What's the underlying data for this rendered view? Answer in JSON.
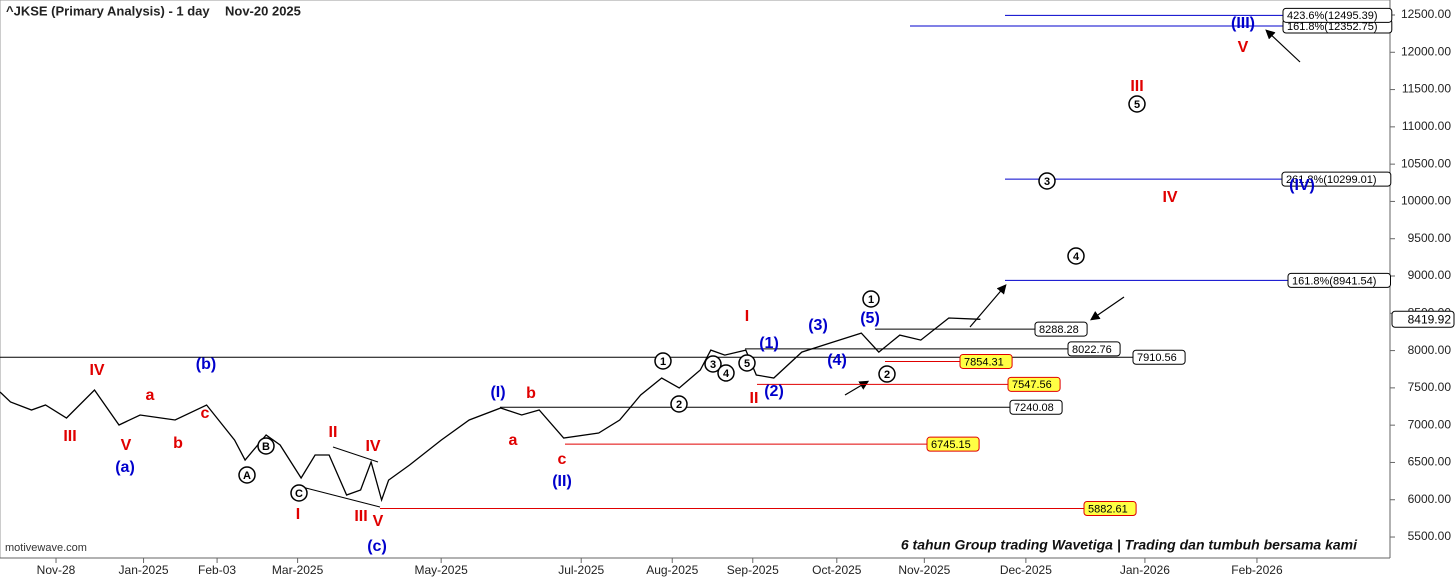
{
  "chart_data": {
    "type": "line",
    "title": "^JKSE (Primary Analysis) - 1 day",
    "date": "Nov-20 2025",
    "watermark": "motivewave.com",
    "banner": "6 tahun Group trading Wavetiga | Trading dan tumbuh bersama kami",
    "color": "#000000",
    "x": [
      0,
      3,
      9,
      13,
      19,
      27,
      34,
      40,
      46,
      50,
      59,
      67,
      70,
      76,
      80,
      86,
      90,
      94,
      99,
      103,
      106,
      109,
      111,
      117,
      126,
      134,
      143,
      149,
      154,
      161,
      171,
      177,
      183,
      189,
      194,
      200,
      203,
      207,
      213,
      216,
      221,
      229,
      237,
      246,
      251,
      257,
      263,
      271,
      280
    ],
    "values": [
      7444,
      7310,
      7203,
      7270,
      7096,
      7471,
      7002,
      7136,
      7096,
      7069,
      7270,
      6800,
      6532,
      6868,
      6734,
      6291,
      6600,
      6600,
      6063,
      6130,
      6506,
      5996,
      6264,
      6466,
      6800,
      7069,
      7230,
      7136,
      7203,
      6828,
      6895,
      7069,
      7404,
      7632,
      7498,
      7739,
      8007,
      7940,
      8007,
      7672,
      7632,
      7980,
      8101,
      8235,
      7980,
      8208,
      8141,
      8437,
      8419.92
    ],
    "xlim": [
      0,
      397
    ],
    "xticks": [
      {
        "value": 16,
        "label": "Nov-28"
      },
      {
        "value": 41,
        "label": "Jan-2025"
      },
      {
        "value": 62,
        "label": "Feb-03"
      },
      {
        "value": 85,
        "label": "Mar-2025"
      },
      {
        "value": 126,
        "label": "May-2025"
      },
      {
        "value": 166,
        "label": "Jul-2025"
      },
      {
        "value": 192,
        "label": "Aug-2025"
      },
      {
        "value": 215,
        "label": "Sep-2025"
      },
      {
        "value": 239,
        "label": "Oct-2025"
      },
      {
        "value": 264,
        "label": "Nov-2025"
      },
      {
        "value": 293,
        "label": "Dec-2025"
      },
      {
        "value": 327,
        "label": "Jan-2026"
      },
      {
        "value": 359,
        "label": "Feb-2026"
      }
    ],
    "ylim": [
      5259,
      12701
    ],
    "yticks": [
      {
        "value": 5500,
        "label": "5500.00"
      },
      {
        "value": 6000,
        "label": "6000.00"
      },
      {
        "value": 6500,
        "label": "6500.00"
      },
      {
        "value": 7000,
        "label": "7000.00"
      },
      {
        "value": 7500,
        "label": "7500.00"
      },
      {
        "value": 8000,
        "label": "8000.00"
      },
      {
        "value": 8500,
        "label": "8500.00"
      },
      {
        "value": 9000,
        "label": "9000.00"
      },
      {
        "value": 9500,
        "label": "9500.00"
      },
      {
        "value": 10000,
        "label": "10000.00"
      },
      {
        "value": 10500,
        "label": "10500.00"
      },
      {
        "value": 11000,
        "label": "11000.00"
      },
      {
        "value": 11500,
        "label": "11500.00"
      },
      {
        "value": 12000,
        "label": "12000.00"
      },
      {
        "value": 12500,
        "label": "12500.00"
      }
    ],
    "last_price": 8419.92,
    "levels": [
      {
        "value": 8288.28,
        "color": "#000000",
        "box": "#ffffff"
      },
      {
        "value": 8022.76,
        "color": "#000000",
        "box": "#ffffff"
      },
      {
        "value": 7910.56,
        "color": "#000000",
        "box": "#ffffff"
      },
      {
        "value": 7854.31,
        "color": "#e00000",
        "box": "#ffff44"
      },
      {
        "value": 7547.56,
        "color": "#e00000",
        "box": "#ffff44"
      },
      {
        "value": 7240.08,
        "color": "#000000",
        "box": "#ffffff"
      },
      {
        "value": 6745.15,
        "color": "#e00000",
        "box": "#ffff44"
      },
      {
        "value": 5882.61,
        "color": "#e00000",
        "box": "#ffff44"
      },
      {
        "value": 8941.54,
        "label": "161.8%(8941.54)",
        "color": "#0000cc",
        "box": "#ffffff"
      },
      {
        "value": 10299.01,
        "label": "261.8%(10299.01)",
        "color": "#0000cc",
        "box": "#ffffff"
      },
      {
        "value": 12352.75,
        "label": "161.8%(12352.75)",
        "color": "#0000cc",
        "box": "#ffffff"
      },
      {
        "value": 12495.39,
        "label": "423.6%(12495.39)",
        "color": "#0000cc",
        "box": "#ffffff"
      }
    ],
    "wave_labels": [
      {
        "text": "IV",
        "color": "#e00000"
      },
      {
        "text": "a",
        "color": "#e00000"
      },
      {
        "text": "(b)",
        "color": "#0000cc"
      },
      {
        "text": "c",
        "color": "#e00000"
      },
      {
        "text": "III",
        "color": "#e00000"
      },
      {
        "text": "V",
        "color": "#e00000"
      },
      {
        "text": "b",
        "color": "#e00000"
      },
      {
        "text": "(a)",
        "color": "#0000cc"
      },
      {
        "text": "B",
        "color": "#000000",
        "circled": true
      },
      {
        "text": "A",
        "color": "#000000",
        "circled": true
      },
      {
        "text": "C",
        "color": "#000000",
        "circled": true
      },
      {
        "text": "II",
        "color": "#e00000"
      },
      {
        "text": "IV",
        "color": "#e00000"
      },
      {
        "text": "I",
        "color": "#e00000"
      },
      {
        "text": "III",
        "color": "#e00000"
      },
      {
        "text": "V",
        "color": "#e00000"
      },
      {
        "text": "(c)",
        "color": "#0000cc"
      },
      {
        "text": "(I)",
        "color": "#0000cc"
      },
      {
        "text": "b",
        "color": "#e00000"
      },
      {
        "text": "a",
        "color": "#e00000"
      },
      {
        "text": "c",
        "color": "#e00000"
      },
      {
        "text": "(II)",
        "color": "#0000cc"
      },
      {
        "text": "1",
        "color": "#000000",
        "circled": true
      },
      {
        "text": "2",
        "color": "#000000",
        "circled": true
      },
      {
        "text": "3",
        "color": "#000000",
        "circled": true
      },
      {
        "text": "4",
        "color": "#000000",
        "circled": true
      },
      {
        "text": "5",
        "color": "#000000",
        "circled": true
      },
      {
        "text": "I",
        "color": "#e00000"
      },
      {
        "text": "II",
        "color": "#e00000"
      },
      {
        "text": "(1)",
        "color": "#0000cc"
      },
      {
        "text": "(2)",
        "color": "#0000cc"
      },
      {
        "text": "(3)",
        "color": "#0000cc"
      },
      {
        "text": "(4)",
        "color": "#0000cc"
      },
      {
        "text": "(5)",
        "color": "#0000cc"
      },
      {
        "text": "1",
        "color": "#000000",
        "circled": true
      },
      {
        "text": "2",
        "color": "#000000",
        "circled": true
      },
      {
        "text": "3",
        "color": "#000000",
        "circled": true
      },
      {
        "text": "4",
        "color": "#000000",
        "circled": true
      },
      {
        "text": "5",
        "color": "#000000",
        "circled": true
      },
      {
        "text": "III",
        "color": "#e00000"
      },
      {
        "text": "IV",
        "color": "#e00000"
      },
      {
        "text": "(IV)",
        "color": "#0000cc"
      },
      {
        "text": "(III)",
        "color": "#0000cc"
      },
      {
        "text": "V",
        "color": "#e00000"
      }
    ]
  }
}
